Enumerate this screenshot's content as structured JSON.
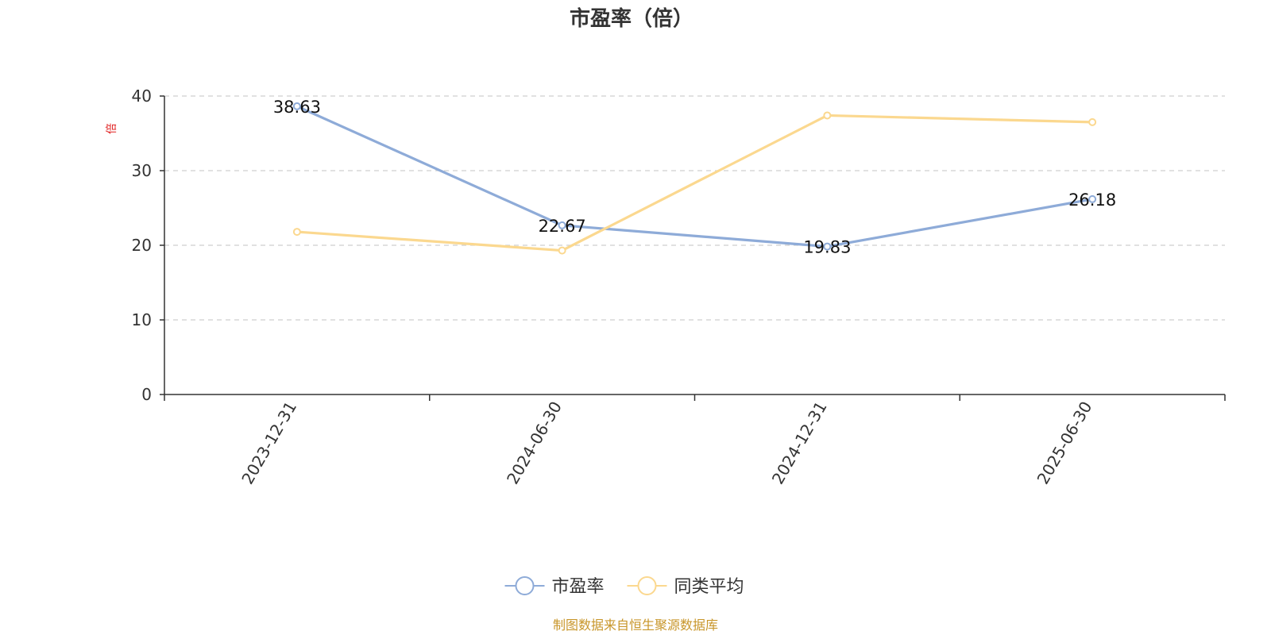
{
  "chart_data": {
    "type": "line",
    "title": "市盈率（倍）",
    "ylabel": "倍",
    "xlabel": "",
    "categories": [
      "2023-12-31",
      "2024-06-30",
      "2024-12-31",
      "2025-06-30"
    ],
    "ylim": [
      0,
      40
    ],
    "yticks": [
      0,
      10,
      20,
      30,
      40
    ],
    "grid": true,
    "legend_position": "bottom",
    "series": [
      {
        "name": "市盈率",
        "values": [
          38.63,
          22.67,
          19.83,
          26.18
        ],
        "color": "#8eabd8",
        "show_labels": true
      },
      {
        "name": "同类平均",
        "values": [
          21.8,
          19.3,
          37.4,
          36.5
        ],
        "color": "#fbd88f",
        "show_labels": false
      }
    ]
  },
  "footer": {
    "source": "制图数据来自恒生聚源数据库",
    "source_color": "#c8962a"
  },
  "unit_color": "#e02020"
}
